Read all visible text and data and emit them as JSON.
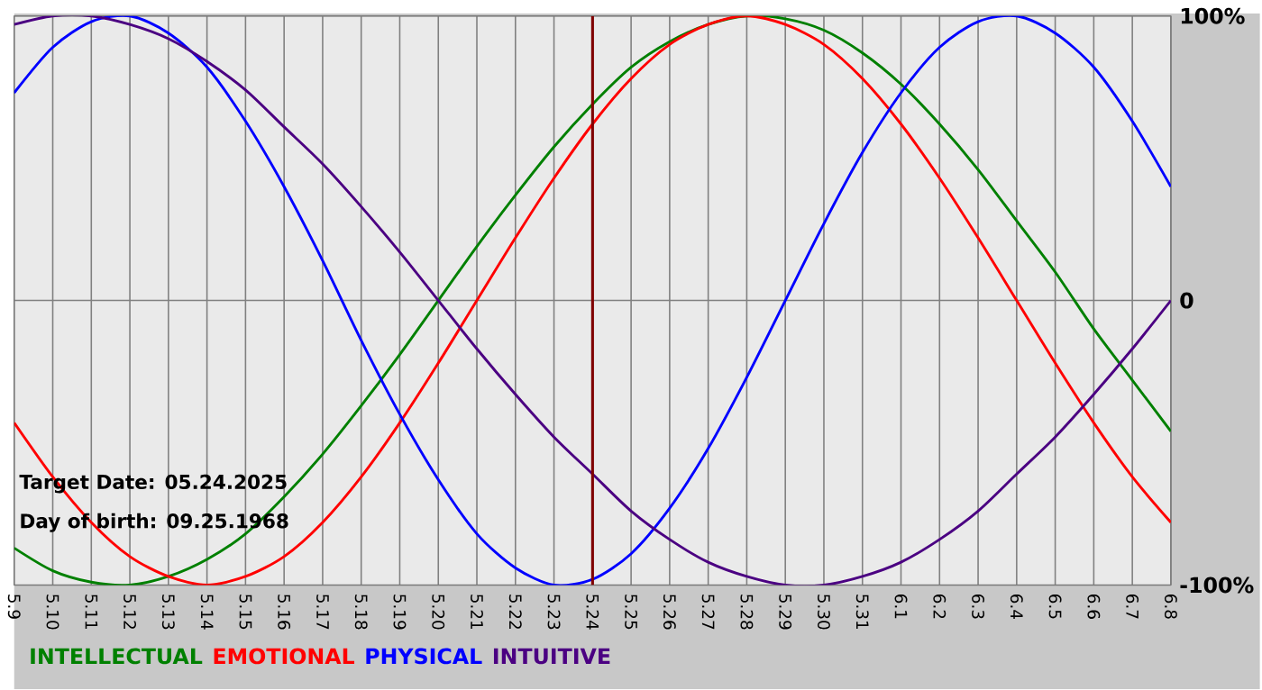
{
  "chart_data": {
    "type": "line",
    "categories": [
      "5.9",
      "5.10",
      "5.11",
      "5.12",
      "5.13",
      "5.14",
      "5.15",
      "5.16",
      "5.17",
      "5.18",
      "5.19",
      "5.20",
      "5.21",
      "5.22",
      "5.23",
      "5.24",
      "5.25",
      "5.26",
      "5.27",
      "5.28",
      "5.29",
      "5.30",
      "5.31",
      "6.1",
      "6.2",
      "6.3",
      "6.4",
      "6.5",
      "6.6",
      "6.7",
      "6.8"
    ],
    "series": [
      {
        "name": "INTELLECTUAL",
        "color": "#008000",
        "values": [
          -87,
          -95,
          -99,
          -100,
          -97,
          -91,
          -82,
          -69,
          -54,
          -37,
          -19,
          0,
          19,
          37,
          54,
          69,
          82,
          91,
          97,
          100,
          99,
          95,
          87,
          76,
          62,
          46,
          28,
          10,
          -10,
          -28,
          -46
        ]
      },
      {
        "name": "EMOTIONAL",
        "color": "#ff0000",
        "values": [
          -43,
          -62,
          -78,
          -90,
          -97,
          -100,
          -97,
          -90,
          -78,
          -62,
          -43,
          -22,
          0,
          22,
          43,
          62,
          78,
          90,
          97,
          100,
          97,
          90,
          78,
          62,
          43,
          22,
          0,
          -22,
          -43,
          -62,
          -78
        ]
      },
      {
        "name": "PHYSICAL",
        "color": "#0000ff",
        "values": [
          73,
          89,
          98,
          100,
          94,
          82,
          63,
          40,
          14,
          -14,
          -40,
          -63,
          -82,
          -94,
          -100,
          -98,
          -89,
          -73,
          -52,
          -27,
          0,
          27,
          52,
          73,
          89,
          98,
          100,
          94,
          82,
          63,
          40
        ]
      },
      {
        "name": "INTUITIVE",
        "color": "#4b0082",
        "values": [
          97,
          100,
          100,
          97,
          92,
          84,
          74,
          61,
          48,
          33,
          17,
          0,
          -17,
          -33,
          -48,
          -61,
          -74,
          -84,
          -92,
          -97,
          -100,
          -100,
          -97,
          -92,
          -84,
          -74,
          -61,
          -48,
          -33,
          -17,
          0
        ]
      }
    ],
    "ylim": [
      -100,
      100
    ],
    "yticks": [
      {
        "value": 100,
        "label": "100%"
      },
      0,
      {
        "value": -100,
        "label": "-100%"
      }
    ],
    "grid": true,
    "legend": "bottom",
    "marker": "none",
    "ref_lines": [
      {
        "axis": "x",
        "value": "5.24",
        "color": "#800000"
      }
    ],
    "annotations": [
      "Target Date: 05.24.2025",
      "Day of birth: 09.25.1968"
    ]
  }
}
